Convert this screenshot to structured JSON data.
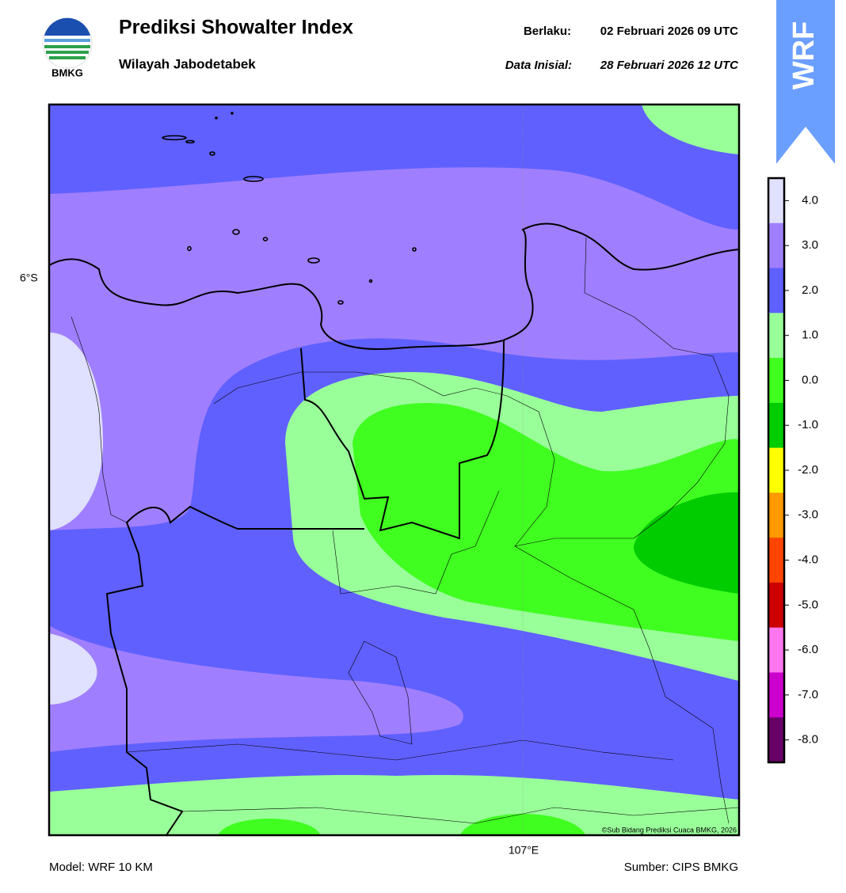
{
  "header": {
    "logo_text": "BMKG",
    "title": "Prediksi Showalter Index",
    "subtitle": "Wilayah Jabodetabek",
    "valid_label": "Berlaku:",
    "valid_time": "02 Februari 2026 09 UTC",
    "init_label": "Data Inisial:",
    "init_time": "28 Februari 2026 12 UTC",
    "badge": "WRF"
  },
  "map": {
    "lat_label": "6°S",
    "lon_label": "107°E",
    "copyright": "©Sub Bidang Prediksi Cuaca BMKG, 2026"
  },
  "colorbar": {
    "ticks": [
      {
        "value": 4,
        "label": "4.0"
      },
      {
        "value": 3,
        "label": "3.0"
      },
      {
        "value": 2,
        "label": "2.0"
      },
      {
        "value": 1,
        "label": "1.0"
      },
      {
        "value": 0,
        "label": "0.0"
      },
      {
        "value": -1,
        "label": "-1.0"
      },
      {
        "value": -2,
        "label": "-2.0"
      },
      {
        "value": -3,
        "label": "-3.0"
      },
      {
        "value": -4,
        "label": "-4.0"
      },
      {
        "value": -5,
        "label": "-5.0"
      },
      {
        "value": -6,
        "label": "-6.0"
      },
      {
        "value": -7,
        "label": "-7.0"
      },
      {
        "value": -8,
        "label": "-8.0"
      }
    ],
    "colors": [
      "#e0e0ff",
      "#9f7fff",
      "#6060ff",
      "#99ff99",
      "#40ff20",
      "#00cc00",
      "#ffff00",
      "#ff9900",
      "#ff4400",
      "#cc0000",
      "#ff77ee",
      "#cc00cc",
      "#660066"
    ]
  },
  "footer": {
    "model": "Model: WRF 10 KM",
    "source": "Sumber: CIPS BMKG"
  }
}
